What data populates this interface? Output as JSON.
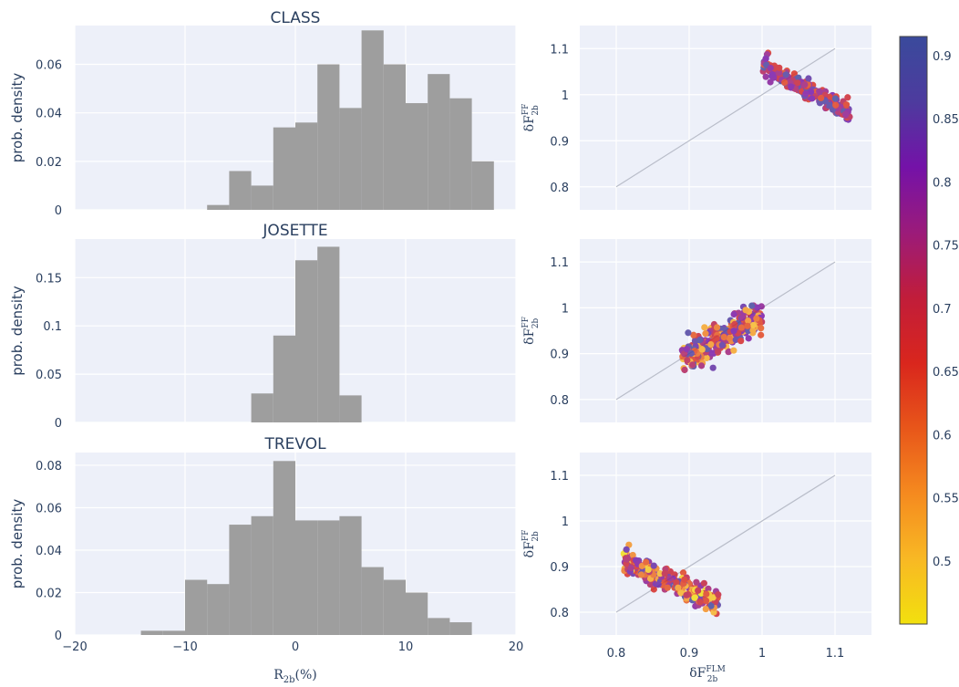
{
  "chart_data": [
    {
      "type": "bar",
      "title": "CLASS",
      "ylabel": "prob. density",
      "xlim": [
        -20,
        20
      ],
      "ylim": [
        0,
        0.076
      ],
      "xticks": [
        -20,
        -10,
        0,
        10,
        20
      ],
      "yticks": [
        0,
        0.02,
        0.04,
        0.06
      ],
      "ytick_labels": [
        "0",
        "0.02",
        "0.04",
        "0.06"
      ],
      "bin_width": 2,
      "bin_starts": [
        -8,
        -6,
        -4,
        -2,
        0,
        2,
        4,
        6,
        8,
        10,
        12,
        14,
        16
      ],
      "values": [
        0.002,
        0.016,
        0.01,
        0.034,
        0.036,
        0.06,
        0.042,
        0.074,
        0.06,
        0.044,
        0.056,
        0.046,
        0.02
      ],
      "bar_color": "#9e9e9e"
    },
    {
      "type": "bar",
      "title": "JOSETTE",
      "ylabel": "prob. density",
      "xlim": [
        -20,
        20
      ],
      "ylim": [
        0,
        0.19
      ],
      "xticks": [
        -20,
        -10,
        0,
        10,
        20
      ],
      "yticks": [
        0,
        0.05,
        0.1,
        0.15
      ],
      "ytick_labels": [
        "0",
        "0.05",
        "0.1",
        "0.15"
      ],
      "bin_width": 2,
      "bin_starts": [
        -4,
        -2,
        0,
        2,
        4
      ],
      "values": [
        0.03,
        0.09,
        0.168,
        0.182,
        0.028
      ],
      "bar_color": "#9e9e9e"
    },
    {
      "type": "bar",
      "title": "TREVOL",
      "ylabel": "prob. density",
      "xlabel_main": "R",
      "xlabel_sub": "2b",
      "xlabel_suffix": "(%)",
      "xlim": [
        -20,
        20
      ],
      "ylim": [
        0,
        0.086
      ],
      "xticks": [
        -20,
        -10,
        0,
        10,
        20
      ],
      "xtick_labels": [
        "−20",
        "−10",
        "0",
        "10",
        "20"
      ],
      "yticks": [
        0,
        0.02,
        0.04,
        0.06,
        0.08
      ],
      "ytick_labels": [
        "0",
        "0.02",
        "0.04",
        "0.06",
        "0.08"
      ],
      "bin_width": 2,
      "bin_starts": [
        -14,
        -12,
        -10,
        -8,
        -6,
        -4,
        -2,
        0,
        2,
        4,
        6,
        8,
        10,
        12,
        14
      ],
      "values": [
        0.002,
        0.002,
        0.026,
        0.024,
        0.052,
        0.056,
        0.082,
        0.054,
        0.054,
        0.056,
        0.032,
        0.026,
        0.02,
        0.008,
        0.006
      ],
      "bar_color": "#9e9e9e"
    },
    {
      "type": "scatter",
      "ylabel_main": "δF",
      "ylabel_sup": "FF",
      "ylabel_sub": "2b",
      "xlim": [
        0.75,
        1.15
      ],
      "ylim": [
        0.75,
        1.15
      ],
      "yticks": [
        0.8,
        0.9,
        1,
        1.1
      ],
      "ytick_labels": [
        "0.8",
        "0.9",
        "1",
        "1.1"
      ],
      "identity_line": [
        0.8,
        1.1
      ],
      "cluster": {
        "x_center": 1.06,
        "x_spread": 0.06,
        "slope": -0.9,
        "intercept_at_center": 1.012,
        "width": 0.009,
        "n": 300,
        "c_min": 0.62,
        "c_max": 0.9,
        "seed": 11
      }
    },
    {
      "type": "scatter",
      "ylabel_main": "δF",
      "ylabel_sup": "FF",
      "ylabel_sub": "2b",
      "xlim": [
        0.75,
        1.15
      ],
      "ylim": [
        0.75,
        1.15
      ],
      "yticks": [
        0.8,
        0.9,
        1,
        1.1
      ],
      "ytick_labels": [
        "0.8",
        "0.9",
        "1",
        "1.1"
      ],
      "identity_line": [
        0.8,
        1.1
      ],
      "cluster": {
        "x_center": 0.945,
        "x_spread": 0.055,
        "slope": 0.8,
        "intercept_at_center": 0.937,
        "width": 0.016,
        "n": 320,
        "c_min": 0.5,
        "c_max": 0.9,
        "seed": 23
      }
    },
    {
      "type": "scatter",
      "ylabel_main": "δF",
      "ylabel_sup": "FF",
      "ylabel_sub": "2b",
      "xlabel_main": "δF",
      "xlabel_sup": "FLM",
      "xlabel_sub": "2b",
      "xlim": [
        0.75,
        1.15
      ],
      "ylim": [
        0.75,
        1.15
      ],
      "xticks": [
        0.8,
        0.9,
        1,
        1.1
      ],
      "xtick_labels": [
        "0.8",
        "0.9",
        "1",
        "1.1"
      ],
      "yticks": [
        0.8,
        0.9,
        1,
        1.1
      ],
      "ytick_labels": [
        "0.8",
        "0.9",
        "1",
        "1.1"
      ],
      "identity_line": [
        0.8,
        1.1
      ],
      "cluster": {
        "x_center": 0.875,
        "x_spread": 0.065,
        "slope": -0.75,
        "intercept_at_center": 0.865,
        "width": 0.013,
        "n": 300,
        "c_min": 0.45,
        "c_max": 0.9,
        "seed": 37
      }
    }
  ],
  "colorbar": {
    "min": 0.45,
    "max": 0.915,
    "ticks": [
      0.5,
      0.55,
      0.6,
      0.65,
      0.7,
      0.75,
      0.8,
      0.85,
      0.9
    ],
    "tick_labels": [
      "0.5",
      "0.55",
      "0.6",
      "0.65",
      "0.7",
      "0.75",
      "0.8",
      "0.85",
      "0.9"
    ],
    "colorscale": [
      "#0d0887",
      "#46039f",
      "#7201a8",
      "#9c179e",
      "#bd3786",
      "#d8576b",
      "#ed7953",
      "#fb9f3a",
      "#fdca26",
      "#f0f921"
    ],
    "display_scale": [
      "#f2e00e",
      "#f8b824",
      "#f58a1f",
      "#e8561a",
      "#d9261d",
      "#c11d3a",
      "#9b1b7a",
      "#7412a8",
      "#4d3b9e",
      "#3a4a9c"
    ]
  },
  "style": {
    "plot_bg": "#edf0f9",
    "grid": "#ffffff",
    "axis_text": "#2a3f5f",
    "identity_line": "#b9bdc9"
  }
}
